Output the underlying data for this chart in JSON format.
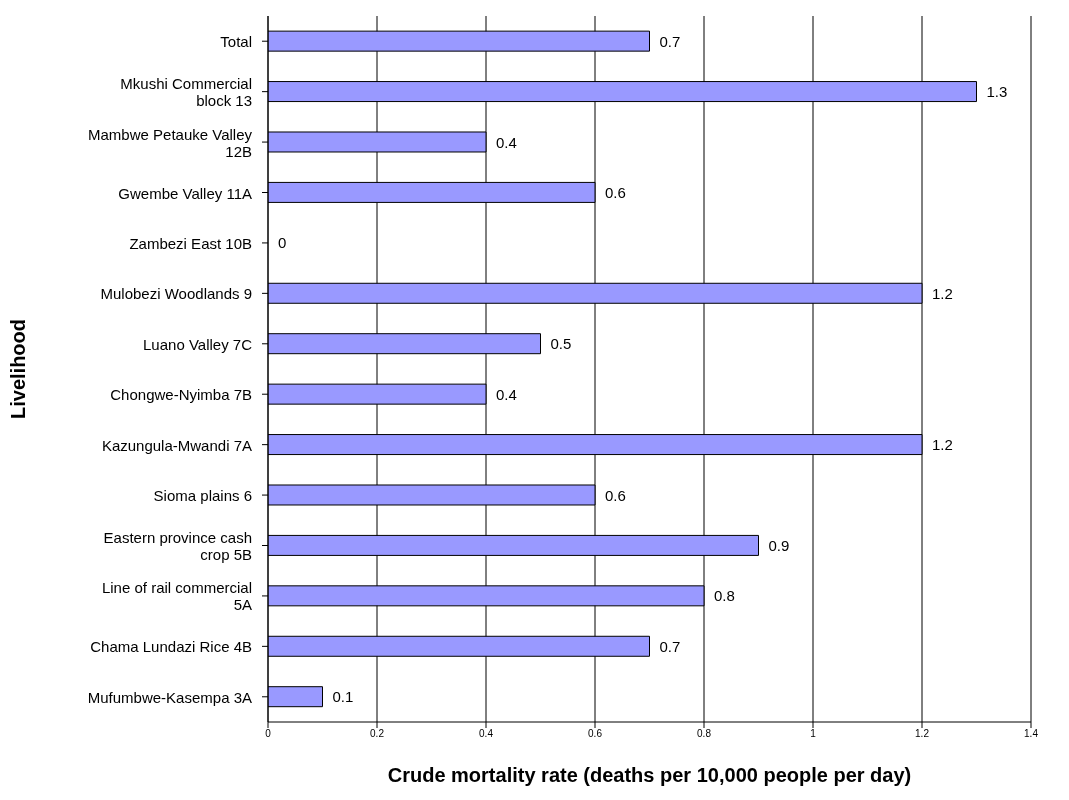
{
  "chart_data": {
    "type": "bar",
    "orientation": "horizontal",
    "xlabel": "Crude mortality rate (deaths per 10,000 people per day)",
    "ylabel": "Livelihood",
    "categories": [
      "Total",
      "Mkushi Commercial block 13",
      "Mambwe Petauke Valley 12B",
      "Gwembe Valley 11A",
      "Zambezi East 10B",
      "Mulobezi Woodlands 9",
      "Luano Valley 7C",
      "Chongwe-Nyimba 7B",
      "Kazungula-Mwandi 7A",
      "Sioma plains 6",
      "Eastern province cash crop 5B",
      "Line of rail commercial 5A",
      "Chama Lundazi Rice 4B",
      "Mufumbwe-Kasempa 3A"
    ],
    "values": [
      0.7,
      1.3,
      0.4,
      0.6,
      0,
      1.2,
      0.5,
      0.4,
      1.2,
      0.6,
      0.9,
      0.8,
      0.7,
      0.1
    ],
    "color": "#9999ff",
    "xlim": [
      0,
      1.4
    ],
    "xticks": [
      0,
      0.2,
      0.4,
      0.6,
      0.8,
      1,
      1.2,
      1.4
    ],
    "grid": "x",
    "data_labels": true
  }
}
